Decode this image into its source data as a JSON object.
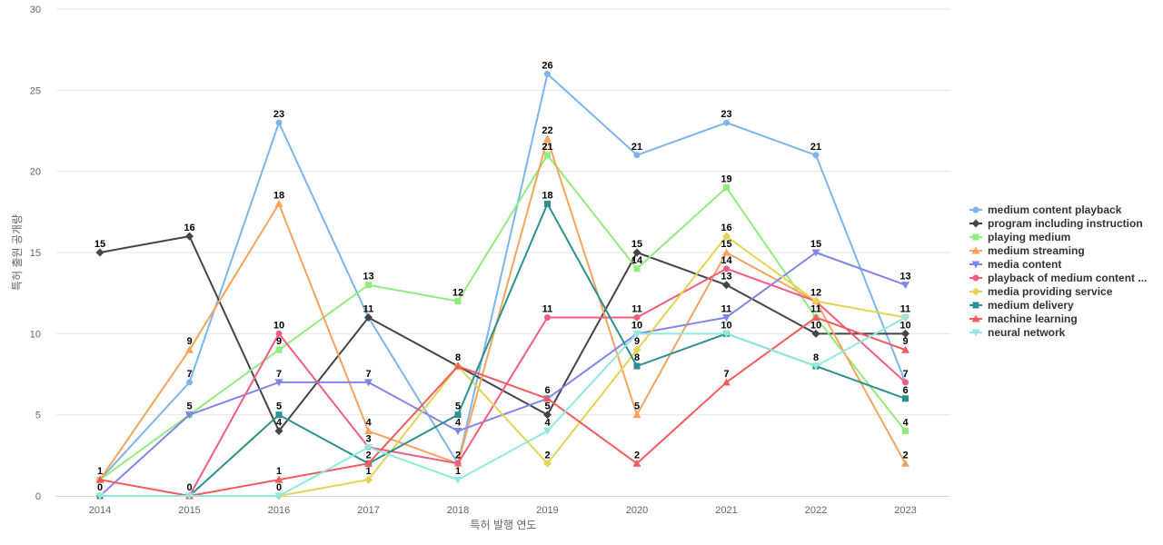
{
  "chart_data": {
    "type": "line",
    "title": "",
    "xlabel": "특허 발행 연도",
    "ylabel": "특허 출원 공개량",
    "ylim": [
      0,
      30
    ],
    "yticks": [
      0,
      5,
      10,
      15,
      20,
      25,
      30
    ],
    "grid": true,
    "legend_position": "right",
    "x": [
      "2014",
      "2015",
      "2016",
      "2017",
      "2018",
      "2019",
      "2020",
      "2021",
      "2022",
      "2023"
    ],
    "series": [
      {
        "name": "medium content playback",
        "color": "#7cb5ec",
        "marker": "circle",
        "values": [
          1,
          7,
          23,
          11,
          2,
          26,
          21,
          23,
          21,
          7
        ]
      },
      {
        "name": "program including instruction",
        "color": "#434348",
        "marker": "diamond",
        "values": [
          15,
          16,
          4,
          11,
          8,
          5,
          15,
          13,
          10,
          10
        ]
      },
      {
        "name": "playing medium",
        "color": "#90ed7d",
        "marker": "square",
        "values": [
          1,
          5,
          9,
          13,
          12,
          21,
          14,
          19,
          11,
          4
        ]
      },
      {
        "name": "medium streaming",
        "color": "#f7a35c",
        "marker": "triangle",
        "values": [
          1,
          9,
          18,
          4,
          2,
          22,
          5,
          15,
          12,
          2
        ]
      },
      {
        "name": "media content",
        "color": "#8085e9",
        "marker": "triangle-down",
        "values": [
          0,
          5,
          7,
          7,
          4,
          6,
          10,
          11,
          15,
          13
        ]
      },
      {
        "name": "playback of medium content ...",
        "color": "#f15c80",
        "marker": "circle",
        "values": [
          0,
          0,
          10,
          3,
          2,
          11,
          11,
          14,
          12,
          7
        ]
      },
      {
        "name": "media providing service",
        "color": "#e4d354",
        "marker": "diamond",
        "values": [
          0,
          0,
          0,
          1,
          8,
          2,
          9,
          16,
          12,
          11
        ]
      },
      {
        "name": "medium delivery",
        "color": "#2b908f",
        "marker": "square",
        "values": [
          0,
          0,
          5,
          2,
          5,
          18,
          8,
          10,
          8,
          6
        ]
      },
      {
        "name": "machine learning",
        "color": "#f45b5b",
        "marker": "triangle",
        "values": [
          1,
          0,
          1,
          2,
          8,
          6,
          2,
          7,
          11,
          9
        ]
      },
      {
        "name": "neural network",
        "color": "#91e8e1",
        "marker": "triangle-down",
        "values": [
          0,
          0,
          0,
          3,
          1,
          4,
          10,
          10,
          8,
          11
        ]
      }
    ],
    "data_labels": [
      {
        "x": "2014",
        "value": 15
      },
      {
        "x": "2014",
        "value": 1
      },
      {
        "x": "2014",
        "value": 0
      },
      {
        "x": "2015",
        "value": 16
      },
      {
        "x": "2015",
        "value": 9
      },
      {
        "x": "2015",
        "value": 7
      },
      {
        "x": "2015",
        "value": 5
      },
      {
        "x": "2015",
        "value": 0
      },
      {
        "x": "2016",
        "value": 23
      },
      {
        "x": "2016",
        "value": 18
      },
      {
        "x": "2016",
        "value": 10
      },
      {
        "x": "2016",
        "value": 9
      },
      {
        "x": "2016",
        "value": 7
      },
      {
        "x": "2016",
        "value": 5
      },
      {
        "x": "2016",
        "value": 4
      },
      {
        "x": "2016",
        "value": 1
      },
      {
        "x": "2016",
        "value": 0
      },
      {
        "x": "2017",
        "value": 13
      },
      {
        "x": "2017",
        "value": 11
      },
      {
        "x": "2017",
        "value": 7
      },
      {
        "x": "2017",
        "value": 4
      },
      {
        "x": "2017",
        "value": 3
      },
      {
        "x": "2017",
        "value": 2
      },
      {
        "x": "2017",
        "value": 1
      },
      {
        "x": "2018",
        "value": 12
      },
      {
        "x": "2018",
        "value": 8
      },
      {
        "x": "2018",
        "value": 5
      },
      {
        "x": "2018",
        "value": 4
      },
      {
        "x": "2018",
        "value": 2
      },
      {
        "x": "2018",
        "value": 1
      },
      {
        "x": "2019",
        "value": 26
      },
      {
        "x": "2019",
        "value": 22
      },
      {
        "x": "2019",
        "value": 21
      },
      {
        "x": "2019",
        "value": 18
      },
      {
        "x": "2019",
        "value": 11
      },
      {
        "x": "2019",
        "value": 6
      },
      {
        "x": "2019",
        "value": 5
      },
      {
        "x": "2019",
        "value": 4
      },
      {
        "x": "2019",
        "value": 2
      },
      {
        "x": "2020",
        "value": 21
      },
      {
        "x": "2020",
        "value": 15
      },
      {
        "x": "2020",
        "value": 14
      },
      {
        "x": "2020",
        "value": 11
      },
      {
        "x": "2020",
        "value": 10
      },
      {
        "x": "2020",
        "value": 9
      },
      {
        "x": "2020",
        "value": 8
      },
      {
        "x": "2020",
        "value": 5
      },
      {
        "x": "2020",
        "value": 2
      },
      {
        "x": "2021",
        "value": 23
      },
      {
        "x": "2021",
        "value": 19
      },
      {
        "x": "2021",
        "value": 16
      },
      {
        "x": "2021",
        "value": 15
      },
      {
        "x": "2021",
        "value": 14
      },
      {
        "x": "2021",
        "value": 13
      },
      {
        "x": "2021",
        "value": 11
      },
      {
        "x": "2021",
        "value": 10
      },
      {
        "x": "2021",
        "value": 7
      },
      {
        "x": "2022",
        "value": 21
      },
      {
        "x": "2022",
        "value": 15
      },
      {
        "x": "2022",
        "value": 12
      },
      {
        "x": "2022",
        "value": 11
      },
      {
        "x": "2022",
        "value": 10
      },
      {
        "x": "2022",
        "value": 8
      },
      {
        "x": "2023",
        "value": 13
      },
      {
        "x": "2023",
        "value": 11
      },
      {
        "x": "2023",
        "value": 10
      },
      {
        "x": "2023",
        "value": 9
      },
      {
        "x": "2023",
        "value": 7
      },
      {
        "x": "2023",
        "value": 6
      },
      {
        "x": "2023",
        "value": 4
      },
      {
        "x": "2023",
        "value": 2
      }
    ]
  }
}
